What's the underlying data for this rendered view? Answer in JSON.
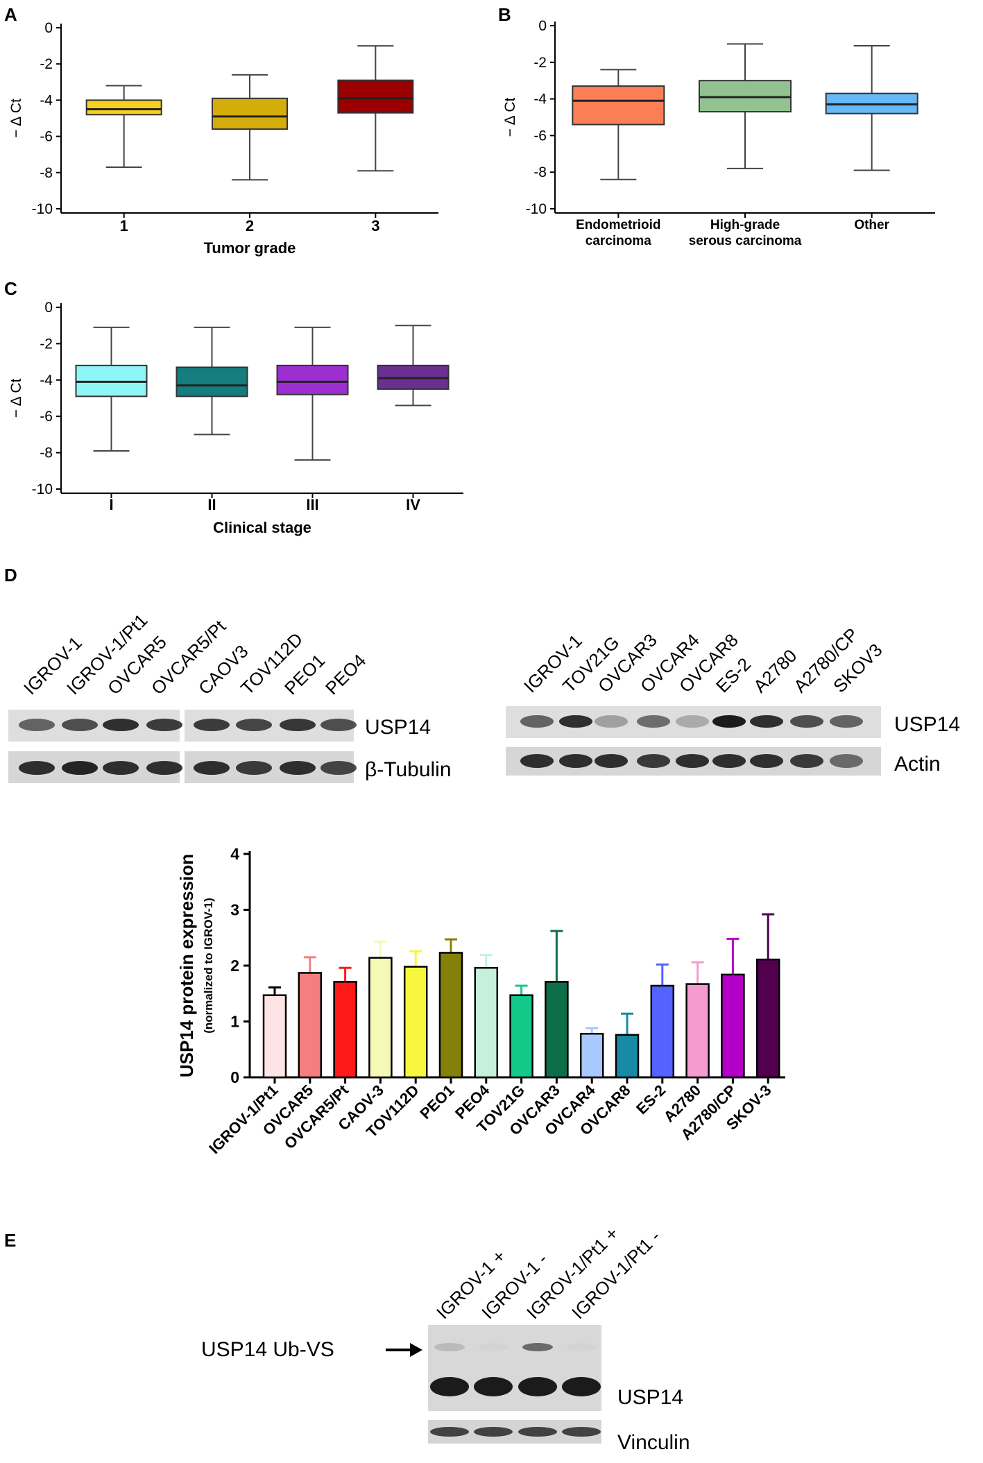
{
  "panel_labels": [
    "A",
    "B",
    "C",
    "D",
    "E"
  ],
  "y_axis_label": "− Δ Ct",
  "colors": {
    "grade1": "#f7d11d",
    "grade2": "#d4ad0a",
    "grade3": "#9a0000",
    "endometrioid": "#fb7f55",
    "hgsc": "#93c291",
    "other": "#67b8f6",
    "stage1": "#8ff6f7",
    "stage2": "#147d7d",
    "stage3": "#9b2fd0",
    "stage4": "#6b2f94"
  },
  "western_blots": {
    "left": {
      "lanes": [
        "IGROV-1",
        "IGROV-1/Pt1",
        "OVCAR5",
        "OVCAR5/Pt",
        "CAOV3",
        "TOV112D",
        "PEO1",
        "PEO4"
      ],
      "band_labels": [
        "USP14",
        "β-Tubulin"
      ]
    },
    "right": {
      "lanes": [
        "IGROV-1",
        "TOV21G",
        "OVCAR3",
        "OVCAR4",
        "OVCAR8",
        "ES-2",
        "A2780",
        "A2780/CP",
        "SKOV3"
      ],
      "band_labels": [
        "USP14",
        "Actin"
      ]
    },
    "e": {
      "lanes": [
        "IGROV-1 +",
        "IGROV-1 -",
        "IGROV-1/Pt1 +",
        "IGROV-1/Pt1 -"
      ],
      "arrow_label": "USP14 Ub-VS",
      "band_labels": [
        "USP14",
        "Vinculin"
      ]
    }
  },
  "chart_data": [
    {
      "id": "A",
      "type": "box",
      "xlabel": "Tumor grade",
      "ylabel": "− Δ Ct",
      "ylim": [
        -10,
        0
      ],
      "yticks": [
        0,
        -2,
        -4,
        -6,
        -8,
        -10
      ],
      "categories": [
        "1",
        "2",
        "3"
      ],
      "boxes": [
        {
          "min": -7.7,
          "q1": -4.8,
          "median": -4.5,
          "q3": -4.0,
          "max": -3.2
        },
        {
          "min": -8.4,
          "q1": -5.6,
          "median": -4.9,
          "q3": -3.9,
          "max": -2.6
        },
        {
          "min": -7.9,
          "q1": -4.7,
          "median": -3.9,
          "q3": -2.9,
          "max": -1.0
        }
      ]
    },
    {
      "id": "B",
      "type": "box",
      "xlabel": "",
      "ylabel": "− Δ Ct",
      "ylim": [
        -10,
        0
      ],
      "yticks": [
        0,
        -2,
        -4,
        -6,
        -8,
        -10
      ],
      "categories": [
        [
          "Endometrioid",
          "carcinoma"
        ],
        [
          "High-grade",
          "serous carcinoma"
        ],
        [
          "Other"
        ]
      ],
      "boxes": [
        {
          "min": -8.4,
          "q1": -5.4,
          "median": -4.1,
          "q3": -3.3,
          "max": -2.4
        },
        {
          "min": -7.8,
          "q1": -4.7,
          "median": -3.9,
          "q3": -3.0,
          "max": -1.0
        },
        {
          "min": -7.9,
          "q1": -4.8,
          "median": -4.3,
          "q3": -3.7,
          "max": -1.1
        }
      ]
    },
    {
      "id": "C",
      "type": "box",
      "xlabel": "Clinical stage",
      "ylabel": "− Δ Ct",
      "ylim": [
        -10,
        0
      ],
      "yticks": [
        0,
        -2,
        -4,
        -6,
        -8,
        -10
      ],
      "categories": [
        "I",
        "II",
        "III",
        "IV"
      ],
      "boxes": [
        {
          "min": -7.9,
          "q1": -4.9,
          "median": -4.1,
          "q3": -3.2,
          "max": -1.1
        },
        {
          "min": -7.0,
          "q1": -4.9,
          "median": -4.3,
          "q3": -3.3,
          "max": -1.1
        },
        {
          "min": -8.4,
          "q1": -4.8,
          "median": -4.1,
          "q3": -3.2,
          "max": -1.1
        },
        {
          "min": -5.4,
          "q1": -4.5,
          "median": -3.9,
          "q3": -3.2,
          "max": -1.0
        }
      ]
    },
    {
      "id": "D",
      "type": "bar",
      "ylabel": "USP14 protein expression",
      "ylabel_sub": "(normalized to IGROV-1)",
      "ylim": [
        0,
        4
      ],
      "yticks": [
        0,
        1,
        2,
        3,
        4
      ],
      "categories": [
        "IGROV-1/Pt1",
        "OVCAR5",
        "OVCAR5/Pt",
        "CAOV-3",
        "TOV112D",
        "PEO1",
        "PEO4",
        "TOV21G",
        "OVCAR3",
        "OVCAR4",
        "OVCAR8",
        "ES-2",
        "A2780",
        "A2780/CP",
        "SKOV-3"
      ],
      "values": [
        1.47,
        1.87,
        1.71,
        2.14,
        1.98,
        2.23,
        1.96,
        1.47,
        1.71,
        0.78,
        0.76,
        1.64,
        1.67,
        1.84,
        2.11
      ],
      "errors": [
        0.14,
        0.28,
        0.25,
        0.29,
        0.28,
        0.24,
        0.23,
        0.17,
        0.91,
        0.1,
        0.38,
        0.38,
        0.39,
        0.64,
        0.81
      ],
      "bar_colors": [
        "#ffe4e6",
        "#f57f7f",
        "#ff1a1a",
        "#f6f8b5",
        "#f7f73b",
        "#85800a",
        "#c4f0dc",
        "#13c98a",
        "#0e6e4a",
        "#a8c8ff",
        "#178aa5",
        "#5463ff",
        "#f59bd0",
        "#b400c6",
        "#52004e"
      ]
    }
  ]
}
